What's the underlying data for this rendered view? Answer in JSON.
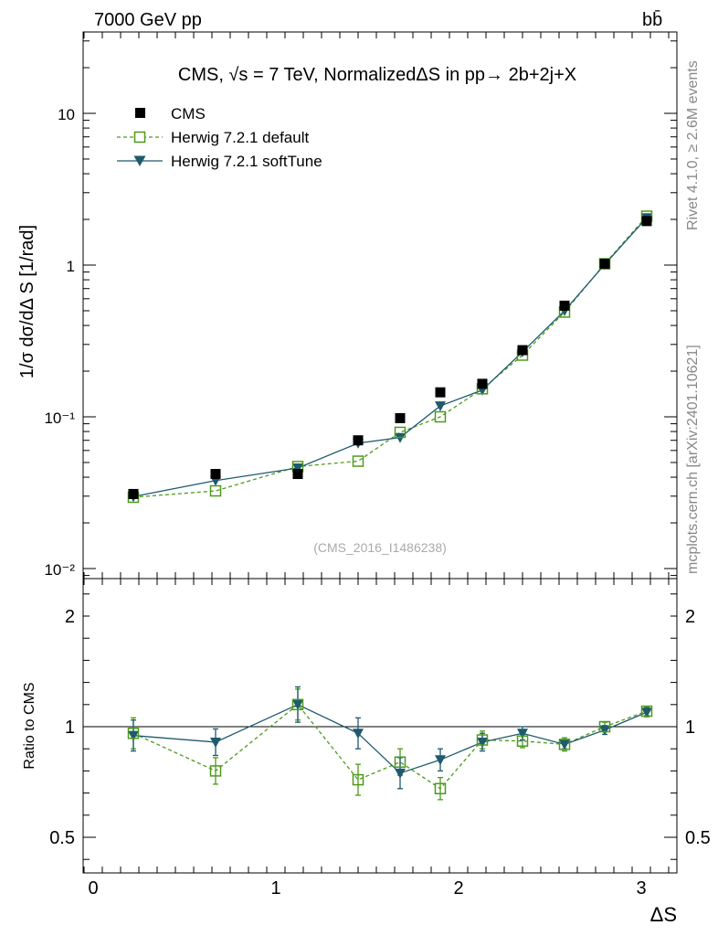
{
  "header": {
    "energy_label": "7000 GeV pp",
    "process_label": "bb̄"
  },
  "side_labels": {
    "rivet": "Rivet 4.1.0, ≥ 2.6M events",
    "mcplots": "mcplots.cern.ch [arXiv:2401.10621]"
  },
  "chart_data": [
    {
      "panel": "main",
      "type": "scatter",
      "title": "CMS, √s = 7 TeV, NormalizedΔS in pp→  2b+2j+X",
      "ylabel": "1/σ dσ/dΔ S [1/rad]",
      "xlabel": "ΔS",
      "yscale": "log",
      "ylim": [
        0.008,
        35
      ],
      "xlim": [
        -0.05,
        3.2
      ],
      "watermark": "(CMS_2016_I1486238)",
      "y_tick_labels": {
        "t1": "10⁻²",
        "t2": "10⁻¹",
        "t3": "1",
        "t4": "10"
      },
      "x": [
        0.22,
        0.67,
        1.12,
        1.45,
        1.68,
        1.9,
        2.13,
        2.35,
        2.58,
        2.8,
        3.03
      ],
      "series": [
        {
          "name": "CMS",
          "color": "#000000",
          "marker": "square-filled",
          "values": [
            0.031,
            0.042,
            0.042,
            0.07,
            0.098,
            0.145,
            0.165,
            0.275,
            0.54,
            1.02,
            1.95
          ]
        },
        {
          "name": "Herwig 7.2.1 default",
          "color": "#4d9a1a",
          "marker": "square-open",
          "line": "dashed",
          "values": [
            0.0295,
            0.0325,
            0.047,
            0.051,
            0.079,
            0.1,
            0.153,
            0.255,
            0.49,
            1.02,
            2.1
          ]
        },
        {
          "name": "Herwig 7.2.1 softTune",
          "color": "#1d5a6e",
          "marker": "triangle-down-filled",
          "line": "solid",
          "values": [
            0.0298,
            0.038,
            0.046,
            0.067,
            0.073,
            0.118,
            0.15,
            0.268,
            0.5,
            1.01,
            2.05
          ]
        }
      ]
    },
    {
      "panel": "ratio",
      "type": "scatter",
      "ylabel": "Ratio to CMS",
      "xlabel": "ΔS",
      "ylim": [
        0.4,
        2.35
      ],
      "xlim": [
        -0.05,
        3.2
      ],
      "x_tick_labels": [
        "0",
        "1",
        "2",
        "3"
      ],
      "y_tick_labels": [
        "0.5",
        "1",
        "2"
      ],
      "x": [
        0.22,
        0.67,
        1.12,
        1.45,
        1.68,
        1.9,
        2.13,
        2.35,
        2.58,
        2.8,
        3.03
      ],
      "series": [
        {
          "name": "Herwig 7.2.1 default",
          "color": "#4d9a1a",
          "values": [
            0.97,
            0.8,
            1.1,
            0.76,
            0.84,
            0.72,
            0.94,
            0.935,
            0.92,
            1.0,
            1.07
          ],
          "errors": [
            0.07,
            0.06,
            0.07,
            0.07,
            0.06,
            0.05,
            0.04,
            0.03,
            0.03,
            0.02,
            0.02
          ]
        },
        {
          "name": "Herwig 7.2.1 softTune",
          "color": "#1d5a6e",
          "values": [
            0.96,
            0.93,
            1.1,
            0.97,
            0.79,
            0.85,
            0.93,
            0.97,
            0.92,
            0.985,
            1.065
          ],
          "errors": [
            0.07,
            0.06,
            0.08,
            0.07,
            0.07,
            0.05,
            0.04,
            0.03,
            0.02,
            0.02,
            0.02
          ]
        }
      ]
    }
  ]
}
